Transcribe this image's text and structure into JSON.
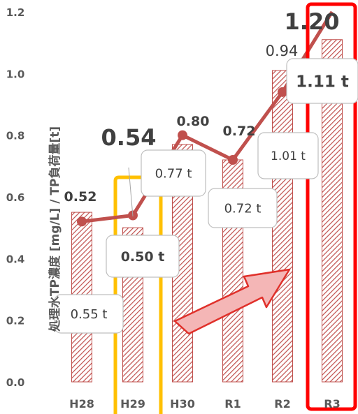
{
  "chart_data": {
    "type": "bar+line",
    "ylabel": "処理水TP濃度 [mg/L] / TP負荷量[t]",
    "ylim": [
      0,
      1.2
    ],
    "yticks": [
      "0.0",
      "0.2",
      "0.4",
      "0.6",
      "0.8",
      "1.0",
      "1.2"
    ],
    "categories": [
      "H28",
      "H29",
      "H30",
      "R1",
      "R2",
      "R3"
    ],
    "series": [
      {
        "type": "bar",
        "values": [
          0.55,
          0.5,
          0.77,
          0.72,
          1.01,
          1.11
        ],
        "labels": [
          "0.55 t",
          "0.50 t",
          "0.77 t",
          "0.72 t",
          "1.01 t",
          "1.11 t"
        ],
        "color": "#c0504d"
      },
      {
        "type": "line",
        "values": [
          0.52,
          0.54,
          0.8,
          0.72,
          0.94,
          1.2
        ],
        "labels": [
          "0.52",
          "0.54",
          "0.80",
          "0.72",
          "0.94",
          "1.20"
        ],
        "color": "#c0504d"
      }
    ],
    "highlights": [
      {
        "category": "H29",
        "color": "#ffc000"
      },
      {
        "category": "R3",
        "color": "#ff0000"
      }
    ],
    "trend_arrow": {
      "fill": "#f4b6b6",
      "stroke": "#e0302a"
    },
    "grid": false
  }
}
